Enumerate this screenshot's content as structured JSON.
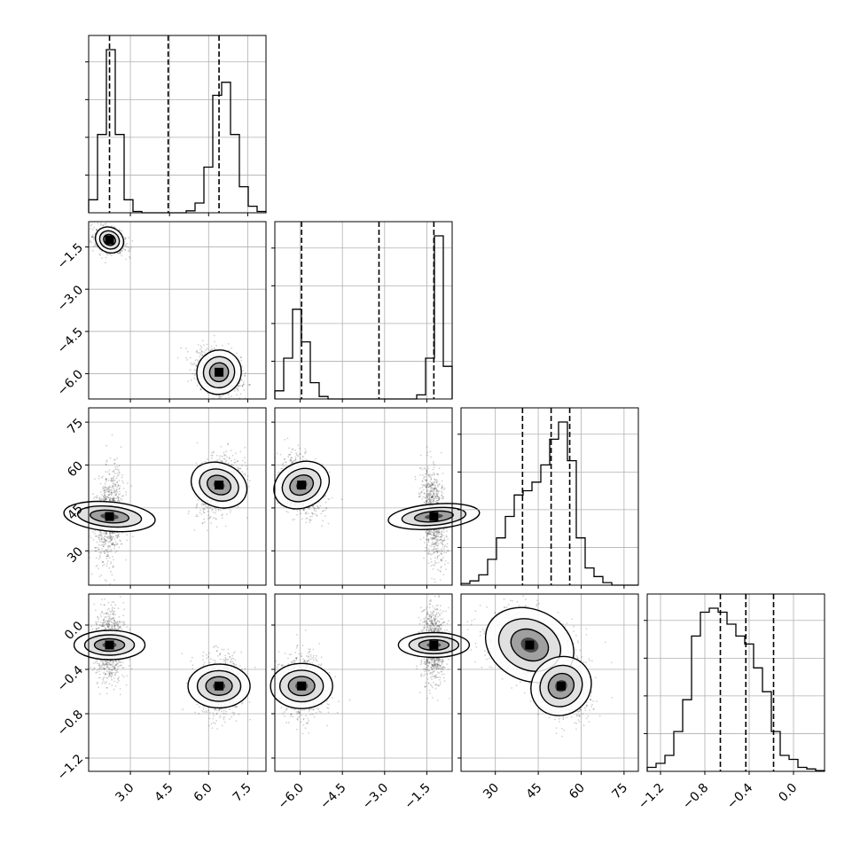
{
  "chart_data": {
    "type": "corner",
    "grid": true,
    "parameters": [
      {
        "range": [
          1.4,
          8.2
        ],
        "ticks": [
          "3.0",
          "4.5",
          "6.0",
          "7.5"
        ],
        "tick_values": [
          3.0,
          4.5,
          6.0,
          7.5
        ],
        "quantiles": [
          2.2,
          4.45,
          6.4
        ],
        "hist": {
          "edges_start": 1.4,
          "bin_width": 0.34,
          "counts": [
            2,
            12,
            25,
            12,
            2,
            0.2,
            0,
            0,
            0,
            0,
            0,
            0.3,
            1.5,
            7,
            18,
            20,
            12,
            4,
            1,
            0.2
          ]
        }
      },
      {
        "range": [
          -6.9,
          -0.6
        ],
        "ticks": [
          "-6.0",
          "-4.5",
          "-3.0",
          "-1.5"
        ],
        "tick_values": [
          -6.0,
          -4.5,
          -3.0,
          -1.5
        ],
        "quantiles": [
          -5.95,
          -3.2,
          -1.25
        ],
        "hist": {
          "edges_start": -6.9,
          "bin_width": 0.315,
          "counts": [
            1,
            5,
            11,
            7,
            2,
            0.3,
            0,
            0,
            0,
            0,
            0,
            0,
            0,
            0,
            0,
            0,
            0.5,
            5,
            20,
            4
          ]
        }
      },
      {
        "range": [
          18,
          80
        ],
        "ticks": [
          "30",
          "45",
          "60",
          "75"
        ],
        "tick_values": [
          30,
          45,
          60,
          75
        ],
        "quantiles": [
          39.5,
          49.5,
          56
        ],
        "hist": {
          "edges_start": 18,
          "bin_width": 3.1,
          "counts": [
            0.2,
            0.5,
            1.2,
            3,
            5.5,
            8,
            10.5,
            11,
            12,
            14,
            17,
            19,
            14.5,
            5.5,
            2,
            1,
            0.3,
            0,
            0,
            0
          ]
        }
      },
      {
        "range": [
          -1.32,
          0.28
        ],
        "ticks": [
          "-1.2",
          "-0.8",
          "-0.4",
          "0.0"
        ],
        "tick_values": [
          -1.2,
          -0.8,
          -0.4,
          0.0
        ],
        "quantiles": [
          -0.66,
          -0.43,
          -0.18
        ],
        "hist": {
          "edges_start": -1.32,
          "bin_width": 0.08,
          "counts": [
            0.5,
            1,
            2,
            5,
            9,
            17,
            20,
            20.5,
            20,
            18.5,
            17,
            16,
            13,
            10,
            5,
            2,
            1.5,
            0.5,
            0.3,
            0.1
          ]
        }
      }
    ],
    "modes": [
      {
        "center": [
          2.2,
          -1.25,
          42,
          -0.18
        ],
        "sd": [
          0.28,
          0.22,
          8,
          0.16
        ],
        "weight": 0.5
      },
      {
        "center": [
          6.4,
          -5.95,
          53,
          -0.55
        ],
        "sd": [
          0.42,
          0.4,
          5,
          0.14
        ],
        "weight": 0.5
      }
    ],
    "correlations": {
      "0-1": -0.3,
      "0-2": 0.25,
      "1-2": -0.3,
      "0-3": 0.0,
      "1-3": 0.0,
      "2-3": -0.3
    }
  }
}
